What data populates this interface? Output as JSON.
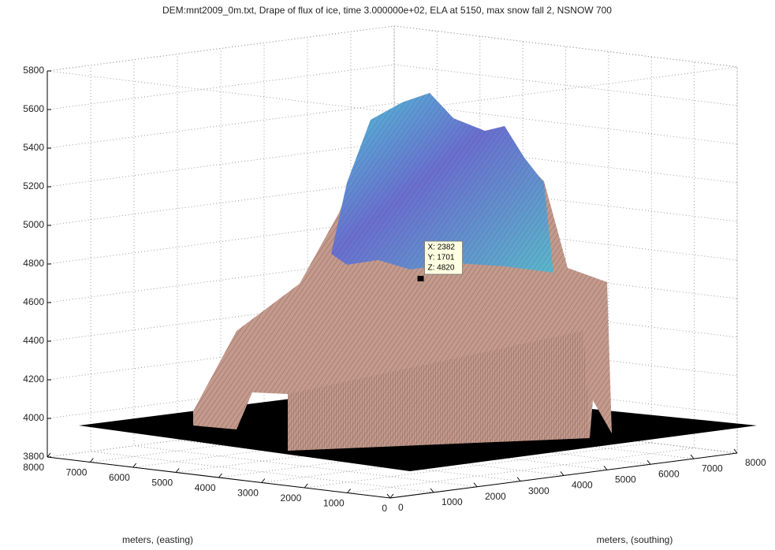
{
  "chart_data": {
    "type": "surface",
    "title": "DEM:mnt2009_0m.txt, Drape of flux of ice, time 3.000000e+02, ELA at 5150, max snow fall 2, NSNOW 700",
    "xlabel": "meters, (southing)",
    "ylabel": "meters, (easting)",
    "xlim": [
      0,
      8000
    ],
    "xticks": [
      0,
      1000,
      2000,
      3000,
      4000,
      5000,
      6000,
      7000,
      8000
    ],
    "ylim": [
      0,
      8000
    ],
    "yticks": [
      0,
      1000,
      2000,
      3000,
      4000,
      5000,
      6000,
      7000,
      8000
    ],
    "zlim": [
      3800,
      5800
    ],
    "zticks": [
      3800,
      4000,
      4200,
      4400,
      4600,
      4800,
      5000,
      5200,
      5400,
      5600,
      5800
    ],
    "grid": true,
    "datatip": {
      "x": 2382,
      "y": 1701,
      "z": 4820,
      "labels": [
        "X: 2382",
        "Y: 1701",
        "Z: 4820"
      ]
    }
  }
}
